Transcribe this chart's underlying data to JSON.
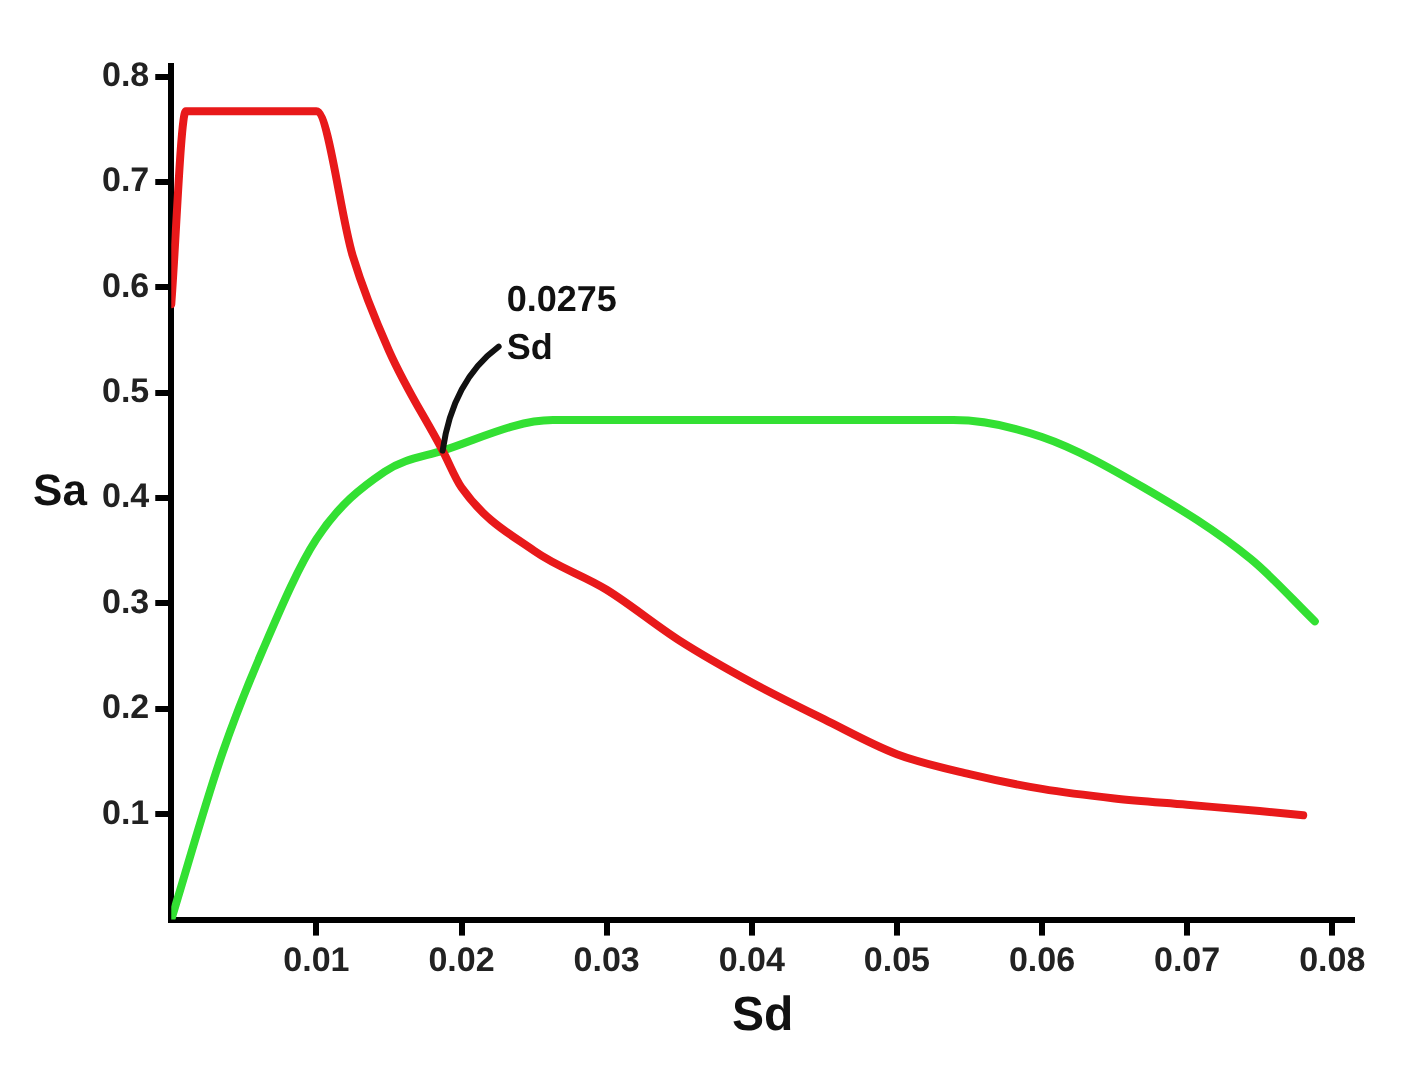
{
  "chart_data": {
    "type": "line",
    "xlabel": "Sd",
    "ylabel": "Sa",
    "xlim": [
      0,
      0.0815
    ],
    "ylim": [
      0,
      0.81
    ],
    "xticks": [
      0.01,
      0.02,
      0.03,
      0.04,
      0.05,
      0.06,
      0.07,
      0.08
    ],
    "yticks": [
      0.1,
      0.2,
      0.3,
      0.4,
      0.5,
      0.6,
      0.7,
      0.8
    ],
    "grid": false,
    "legend": false,
    "marker": "none",
    "line_style": "solid",
    "annotations": [
      {
        "text": "0.0275 Sd",
        "x": 0.0187,
        "y": 0.445
      }
    ],
    "series": [
      {
        "color": "#e8191a",
        "x": [
          0,
          0.001,
          0.01,
          0.0125,
          0.015,
          0.0187,
          0.02,
          0.025,
          0.03,
          0.035,
          0.04,
          0.045,
          0.05,
          0.055,
          0.06,
          0.065,
          0.07,
          0.075,
          0.078
        ],
        "values": [
          0.584,
          0.767,
          0.767,
          0.63,
          0.54,
          0.445,
          0.41,
          0.35,
          0.313,
          0.265,
          0.225,
          0.19,
          0.157,
          0.138,
          0.124,
          0.115,
          0.109,
          0.103,
          0.099
        ]
      },
      {
        "color": "#33e033",
        "x": [
          0,
          0.0035,
          0.00625,
          0.01,
          0.0147,
          0.0187,
          0.0263,
          0.04,
          0.0539,
          0.06,
          0.067,
          0.0744,
          0.0788
        ],
        "values": [
          0,
          0.157,
          0.254,
          0.361,
          0.425,
          0.445,
          0.474,
          0.474,
          0.474,
          0.458,
          0.41,
          0.342,
          0.283
        ]
      }
    ]
  }
}
